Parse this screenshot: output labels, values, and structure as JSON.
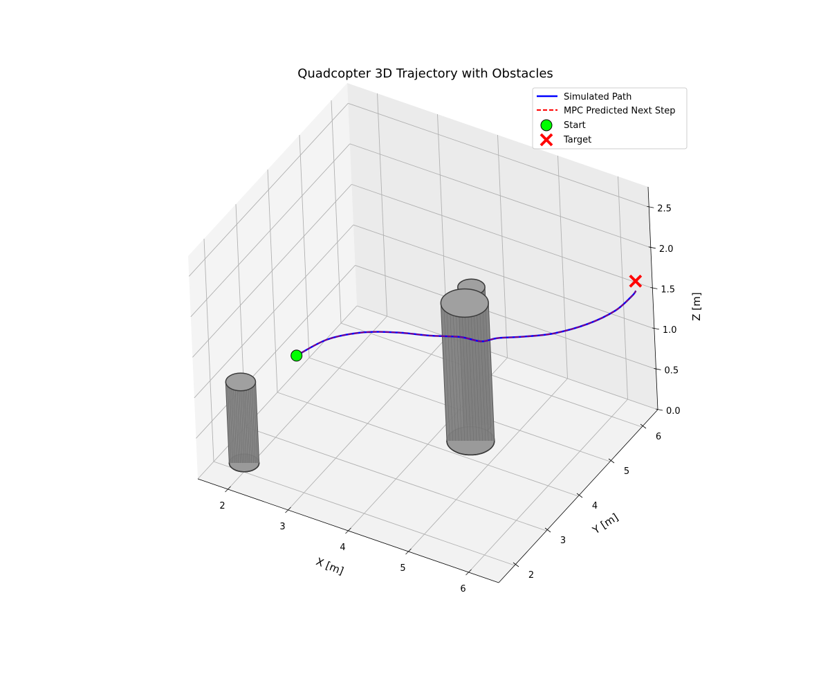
{
  "chart_data": {
    "type": "line",
    "title": "Quadcopter 3D Trajectory with Obstacles",
    "xlabel": "X [m]",
    "ylabel": "Y [m]",
    "zlabel": "Z [m]",
    "xlim": [
      1.5,
      6.5
    ],
    "ylim": [
      1.5,
      6.5
    ],
    "zlim": [
      0.0,
      2.75
    ],
    "x_ticks": [
      2,
      3,
      4,
      5,
      6
    ],
    "y_ticks": [
      2,
      3,
      4,
      5,
      6
    ],
    "z_ticks": [
      0.0,
      0.5,
      1.0,
      1.5,
      2.0,
      2.5
    ],
    "x_tick_labels": [
      "2",
      "3",
      "4",
      "5",
      "6"
    ],
    "y_tick_labels": [
      "2",
      "3",
      "4",
      "5",
      "6"
    ],
    "z_tick_labels": [
      "0.0",
      "0.5",
      "1.0",
      "1.5",
      "2.0",
      "2.5"
    ],
    "grid": true,
    "legend_position": "top-right",
    "legend": [
      {
        "label": "Simulated Path",
        "style": "solid-line",
        "color": "#0000ff"
      },
      {
        "label": "MPC Predicted Next Step",
        "style": "dashed-line",
        "color": "#ff0000"
      },
      {
        "label": "Start",
        "style": "circle-marker",
        "color": "#00ff00"
      },
      {
        "label": "Target",
        "style": "x-marker",
        "color": "#ff0000"
      }
    ],
    "series": [
      {
        "name": "Simulated Path",
        "color": "#0000ff",
        "points": [
          [
            2.3,
            3.2,
            1.0
          ],
          [
            2.62,
            3.58,
            1.12
          ],
          [
            3.05,
            3.9,
            1.18
          ],
          [
            3.5,
            4.12,
            1.2
          ],
          [
            3.95,
            4.3,
            1.2
          ],
          [
            4.35,
            4.5,
            1.2
          ],
          [
            4.62,
            4.63,
            1.16
          ],
          [
            4.85,
            4.72,
            1.22
          ],
          [
            5.2,
            4.88,
            1.26
          ],
          [
            5.6,
            5.1,
            1.31
          ],
          [
            6.0,
            5.4,
            1.4
          ],
          [
            6.3,
            5.7,
            1.51
          ],
          [
            6.45,
            5.95,
            1.62
          ],
          [
            6.5,
            6.0,
            1.68
          ]
        ]
      },
      {
        "name": "MPC Predicted Next Step",
        "color": "#ff0000",
        "points": [
          [
            2.3,
            3.2,
            1.0
          ],
          [
            2.62,
            3.58,
            1.12
          ],
          [
            3.05,
            3.9,
            1.18
          ],
          [
            3.5,
            4.12,
            1.2
          ],
          [
            3.95,
            4.3,
            1.2
          ],
          [
            4.35,
            4.5,
            1.2
          ],
          [
            4.62,
            4.63,
            1.16
          ],
          [
            4.85,
            4.72,
            1.22
          ],
          [
            5.2,
            4.88,
            1.26
          ],
          [
            5.6,
            5.1,
            1.31
          ],
          [
            6.0,
            5.4,
            1.4
          ],
          [
            6.3,
            5.7,
            1.51
          ],
          [
            6.45,
            5.95,
            1.62
          ],
          [
            6.5,
            6.0,
            1.68
          ]
        ]
      }
    ],
    "start": [
      2.3,
      3.2,
      1.0
    ],
    "target": [
      6.5,
      6.0,
      1.8
    ],
    "obstacles": [
      {
        "cx": 1.9,
        "cy": 2.2,
        "r": 0.22,
        "height": 1.0
      },
      {
        "cx": 4.4,
        "cy": 4.8,
        "r": 0.2,
        "height": 1.7
      },
      {
        "cx": 4.5,
        "cy": 4.4,
        "r": 0.35,
        "height": 1.7
      }
    ],
    "colors": {
      "pane": "#f2f2f2",
      "grid": "#b0b0b0",
      "obstacle_fill": "#808080",
      "obstacle_edge": "#3a3a3a"
    }
  }
}
